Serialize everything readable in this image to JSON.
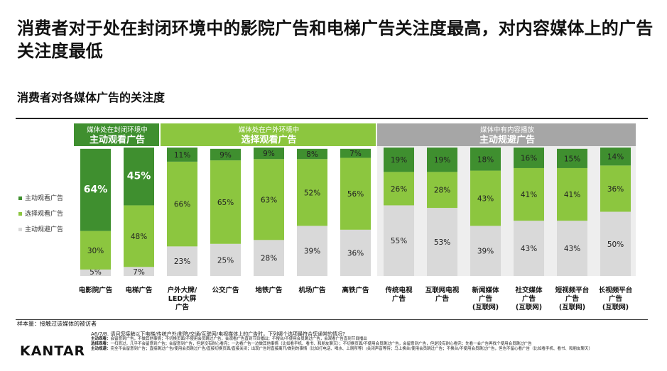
{
  "title": "消费者对于处在封闭环境中的影院广告和电梯广告关注度最高，对内容媒体上的广告关注度最低",
  "subtitle": "消费者对各媒体广告的关注度",
  "sample_note": "样本量：接触过该媒体的被访者",
  "footnote": {
    "question": "A6/7/8. 请问您接触以下电梯/传统户外/影院/交通/互联网/电视媒体上的广告时，下列哪个选项最符合您通常的情况?",
    "line1_label": "主动观看：",
    "line1": "会留意到广告，不做其他事情；不切换页面/不使用会员跳过广告，会观看广告直到节目播出；不搜台/不使用会员跳过广告，会观看广告直到节目播出",
    "line2_label": "选择观看：",
    "line2": "一扫而过，几乎不会留意到广告；会留意到广告，但是没有耐心看完；一边看广告一边做其他事情（比如看手机、看书、和朋友聊天）；不切换页面/不使用会员跳过广告，会留意到广告，但是没有耐心看完；先看一会广告再找个使用会员跳过广告",
    "line3_label": "主动规避：",
    "line3": "完全不会留意到广告；直接跳过广告/使用会员跳过广告/直接切换页面/直接关闭；出现广告时直接离开/做别的事情（比如打电话、喝水、上厕所等）/关闭声音等待；马上换台/使用会员跳过广告；不换台/不使用会员跳过广告，但也不留心看广告（比如看手机、看书、和朋友聊天）"
  },
  "logo": "KANTAR",
  "colors": {
    "active": "#3f8f2f",
    "choice": "#8cc63f",
    "avoid": "#d9d9d9",
    "group_avoid_header": "#a6a6a6",
    "text_light": "#ffffff"
  },
  "chart_data": {
    "type": "bar",
    "stacked": true,
    "percent": true,
    "categories": [
      "电影院广告",
      "电梯广告",
      "户外大牌/LED大屏广告",
      "公交广告",
      "地铁广告",
      "机场广告",
      "高铁广告",
      "传统电视广告",
      "互联网电视广告",
      "新闻媒体广告(互联网)",
      "社交媒体广告(互联网)",
      "短视频平台广告(互联网)",
      "长视频平台广告(互联网)"
    ],
    "category_lines": [
      [
        "电影院广告"
      ],
      [
        "电梯广告"
      ],
      [
        "户外大牌/",
        "LED大屏",
        "广告"
      ],
      [
        "公交广告"
      ],
      [
        "地铁广告"
      ],
      [
        "机场广告"
      ],
      [
        "高铁广告"
      ],
      [
        "传统电视",
        "广告"
      ],
      [
        "互联网电视",
        "广告"
      ],
      [
        "新闻媒体",
        "广告",
        "(互联网)"
      ],
      [
        "社交媒体",
        "广告",
        "(互联网)"
      ],
      [
        "短视频平台",
        "广告",
        "(互联网)"
      ],
      [
        "长视频平台",
        "广告",
        "(互联网)"
      ]
    ],
    "series": [
      {
        "name": "主动规避广告",
        "values": [
          5,
          7,
          23,
          25,
          28,
          39,
          36,
          55,
          53,
          39,
          43,
          43,
          50
        ]
      },
      {
        "name": "选择观看广告",
        "values": [
          30,
          48,
          66,
          65,
          63,
          52,
          56,
          26,
          28,
          43,
          41,
          41,
          36
        ]
      },
      {
        "name": "主动观看广告",
        "values": [
          64,
          45,
          11,
          9,
          9,
          8,
          7,
          19,
          19,
          18,
          16,
          15,
          14
        ]
      }
    ],
    "legend": [
      "主动观看广告",
      "选择观看广告",
      "主动规避广告"
    ],
    "value_labels": [
      [
        "5%",
        "30%",
        "64%"
      ],
      [
        "7%",
        "48%",
        "45%"
      ],
      [
        "23%",
        "66%",
        "11%"
      ],
      [
        "25%",
        "65%",
        "9%"
      ],
      [
        "28%",
        "63%",
        "9%"
      ],
      [
        "39%",
        "52%",
        "8%"
      ],
      [
        "36%",
        "56%",
        "7%"
      ],
      [
        "55%",
        "26%",
        "19%"
      ],
      [
        "53%",
        "28%",
        "19%"
      ],
      [
        "39%",
        "43%",
        "18%"
      ],
      [
        "43%",
        "41%",
        "16%"
      ],
      [
        "43%",
        "41%",
        "15%"
      ],
      [
        "50%",
        "36%",
        "14%"
      ]
    ],
    "groups": [
      {
        "line1": "媒体处在封闭环境中",
        "line2": "主动观看广告",
        "start": 0,
        "end": 1,
        "style": "active"
      },
      {
        "line1": "媒体处在户外环境中",
        "line2": "选择观看广告",
        "start": 2,
        "end": 6,
        "style": "choice"
      },
      {
        "line1": "媒体中有内容播放",
        "line2": "主动规避广告",
        "start": 7,
        "end": 12,
        "style": "avoid"
      }
    ],
    "ylim": [
      0,
      100
    ],
    "legend_position": "left"
  }
}
